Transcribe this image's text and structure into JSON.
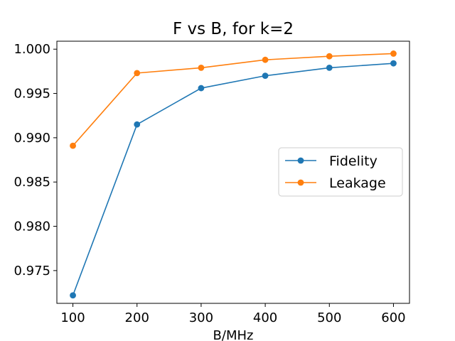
{
  "chart_data": {
    "type": "line",
    "title": "F vs B, for k=2",
    "xlabel": "B/MHz",
    "ylabel": "",
    "x": [
      100,
      200,
      300,
      400,
      500,
      600
    ],
    "xticks": [
      100,
      200,
      300,
      400,
      500,
      600
    ],
    "xtick_labels": [
      "100",
      "200",
      "300",
      "400",
      "500",
      "600"
    ],
    "yticks": [
      0.975,
      0.98,
      0.985,
      0.99,
      0.995,
      1.0
    ],
    "ytick_labels": [
      "0.975",
      "0.980",
      "0.985",
      "0.990",
      "0.995",
      "1.000"
    ],
    "xlim": [
      75,
      625
    ],
    "ylim": [
      0.9713,
      1.0009
    ],
    "grid": false,
    "legend_position": "center-right",
    "series": [
      {
        "name": "Fidelity",
        "color": "#1f77b4",
        "marker": "circle",
        "values": [
          0.9722,
          0.9915,
          0.9956,
          0.997,
          0.9979,
          0.9984
        ]
      },
      {
        "name": "Leakage",
        "color": "#ff7f0e",
        "marker": "circle",
        "values": [
          0.9891,
          0.9973,
          0.9979,
          0.9988,
          0.9992,
          0.9995
        ]
      }
    ]
  }
}
